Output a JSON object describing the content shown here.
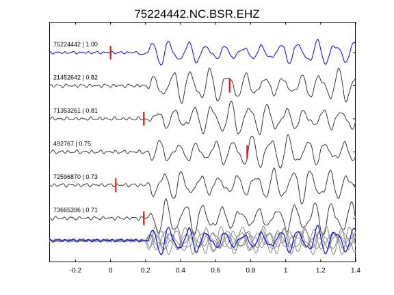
{
  "chart_data": {
    "type": "line",
    "title": "75224442.NC.BSR.EHZ",
    "xlabel": "",
    "ylabel": "",
    "xlim": [
      -0.35,
      1.4
    ],
    "xticks": [
      -0.2,
      0,
      0.2,
      0.4,
      0.6,
      0.8,
      1,
      1.2,
      1.4
    ],
    "xtick_labels": [
      "-0.2",
      "0",
      "0.2",
      "0.4",
      "0.6",
      "0.8",
      "1",
      "1.2",
      "1.4"
    ],
    "grid": false,
    "legend": "none",
    "traces": [
      {
        "label": "75224442 | 1.00",
        "pick_time": 0.0,
        "color": "#0000ff",
        "seed": 1
      },
      {
        "label": "21452642 | 0.82",
        "pick_time": 0.68,
        "color": "#333333",
        "seed": 2
      },
      {
        "label": "71353261 | 0.81",
        "pick_time": 0.19,
        "color": "#333333",
        "seed": 3
      },
      {
        "label": "492767 | 0.75",
        "pick_time": 0.78,
        "color": "#333333",
        "seed": 4
      },
      {
        "label": "72596870 | 0.73",
        "pick_time": 0.03,
        "color": "#333333",
        "seed": 5
      },
      {
        "label": "73665396 | 0.71",
        "pick_time": 0.19,
        "color": "#333333",
        "seed": 6
      }
    ],
    "stack": {
      "reference_color": "#0000ff",
      "overlay_color": "#888888"
    },
    "colors": {
      "pick": "#ff0000",
      "axes": "#000000"
    }
  }
}
